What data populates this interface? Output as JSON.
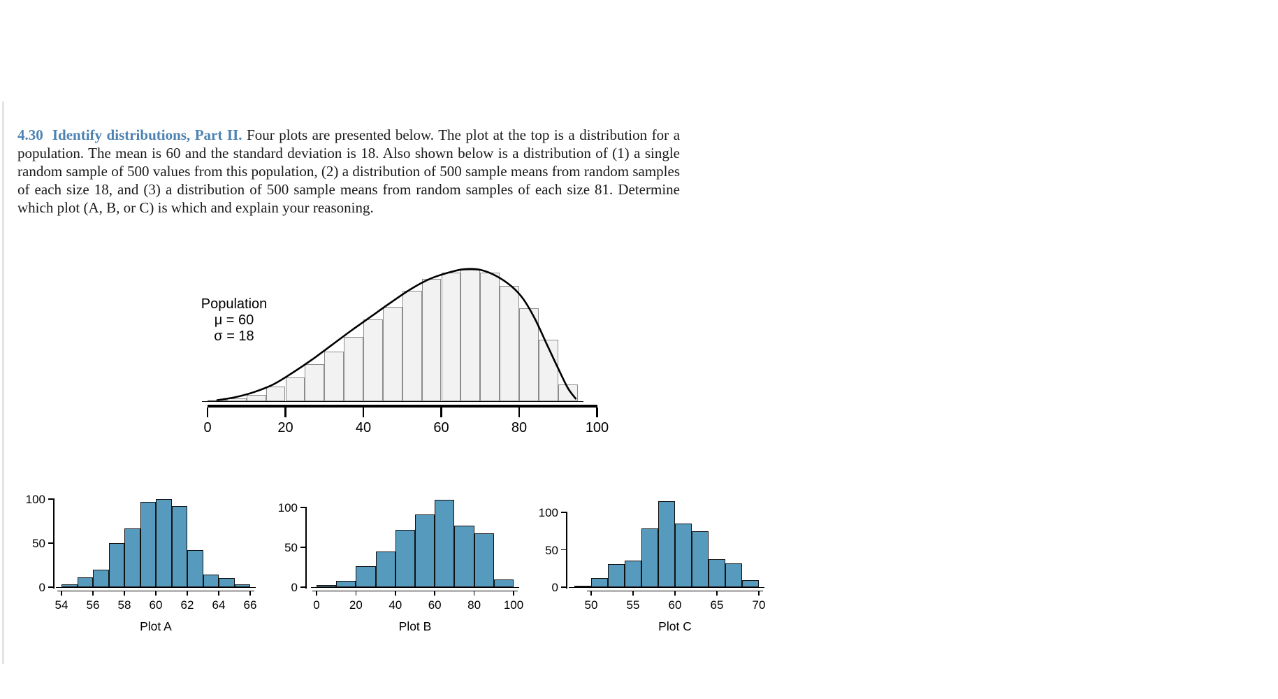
{
  "page": {
    "exercise_number": "4.30",
    "exercise_title": "Identify distributions, Part II.",
    "exercise_body": "Four plots are presented below. The plot at the top is a distribution for a population. The mean is 60 and the standard deviation is 18. Also shown below is a distribution of (1) a single random sample of 500 values from this population, (2) a distribution of 500 sample means from random samples of each size 18, and (3) a distribution of 500 sample means from random samples of each size 81. Determine which plot (A, B, or C) is which and explain your reasoning.",
    "accent_color": "#4d82b2"
  },
  "chart_data": [
    {
      "id": "population",
      "type": "histogram",
      "title": "Population",
      "annotations": [
        "μ = 60",
        "σ = 18"
      ],
      "x_ticks": [
        0,
        20,
        40,
        60,
        80,
        100
      ],
      "x_range": [
        0,
        100
      ],
      "y_axis": "unlabeled (relative frequency, normalized to peak = 1)",
      "bin_start": 0,
      "bin_width": 5,
      "bar_heights_relative": [
        0.01,
        0.02,
        0.05,
        0.11,
        0.18,
        0.28,
        0.38,
        0.49,
        0.62,
        0.72,
        0.84,
        0.93,
        0.98,
        1.0,
        0.98,
        0.88,
        0.71,
        0.47,
        0.13
      ],
      "density_curve_points": [
        [
          2.5,
          0.008
        ],
        [
          7,
          0.03
        ],
        [
          12,
          0.07
        ],
        [
          17,
          0.13
        ],
        [
          22,
          0.22
        ],
        [
          27,
          0.32
        ],
        [
          32,
          0.43
        ],
        [
          37,
          0.54
        ],
        [
          42,
          0.645
        ],
        [
          47,
          0.75
        ],
        [
          52,
          0.85
        ],
        [
          57,
          0.93
        ],
        [
          62,
          0.98
        ],
        [
          66,
          1.005
        ],
        [
          70,
          1.0
        ],
        [
          74,
          0.955
        ],
        [
          78,
          0.875
        ],
        [
          81,
          0.78
        ],
        [
          84,
          0.63
        ],
        [
          87,
          0.44
        ],
        [
          90,
          0.25
        ],
        [
          92.5,
          0.1
        ],
        [
          94.5,
          0.02
        ]
      ],
      "bar_fill": "#f2f2f2",
      "bar_border": "#8c8c8c",
      "curve_color": "#000000",
      "grid": "off",
      "legend": "none"
    },
    {
      "id": "plot-a",
      "type": "histogram",
      "title": "Plot A",
      "x_ticks": [
        54,
        56,
        58,
        60,
        62,
        64,
        66
      ],
      "y_ticks": [
        0,
        50,
        100
      ],
      "ylim": [
        0,
        105
      ],
      "bin_start": 54,
      "bin_width": 1,
      "counts": [
        3,
        11,
        20,
        50,
        67,
        97,
        100,
        92,
        42,
        14,
        10,
        3
      ],
      "bar_fill": "#569bbd",
      "bar_border": "#111111",
      "grid": "off",
      "legend": "none"
    },
    {
      "id": "plot-b",
      "type": "histogram",
      "title": "Plot B",
      "x_ticks": [
        0,
        20,
        40,
        60,
        80,
        100
      ],
      "y_ticks": [
        0,
        50,
        100
      ],
      "ylim": [
        0,
        112
      ],
      "bin_start": 0,
      "bin_width": 10,
      "counts": [
        3,
        8,
        26,
        45,
        72,
        91,
        110,
        77,
        68,
        10
      ],
      "bar_fill": "#569bbd",
      "bar_border": "#111111",
      "grid": "off",
      "legend": "none"
    },
    {
      "id": "plot-c",
      "type": "histogram",
      "title": "Plot C",
      "x_ticks": [
        50,
        55,
        60,
        65,
        70
      ],
      "y_ticks": [
        0,
        50,
        100
      ],
      "ylim": [
        0,
        118
      ],
      "bin_start": 48,
      "bin_width": 2,
      "counts": [
        2,
        12,
        31,
        36,
        79,
        115,
        85,
        75,
        37,
        32,
        9
      ],
      "bar_fill": "#569bbd",
      "bar_border": "#111111",
      "grid": "off",
      "legend": "none"
    }
  ]
}
